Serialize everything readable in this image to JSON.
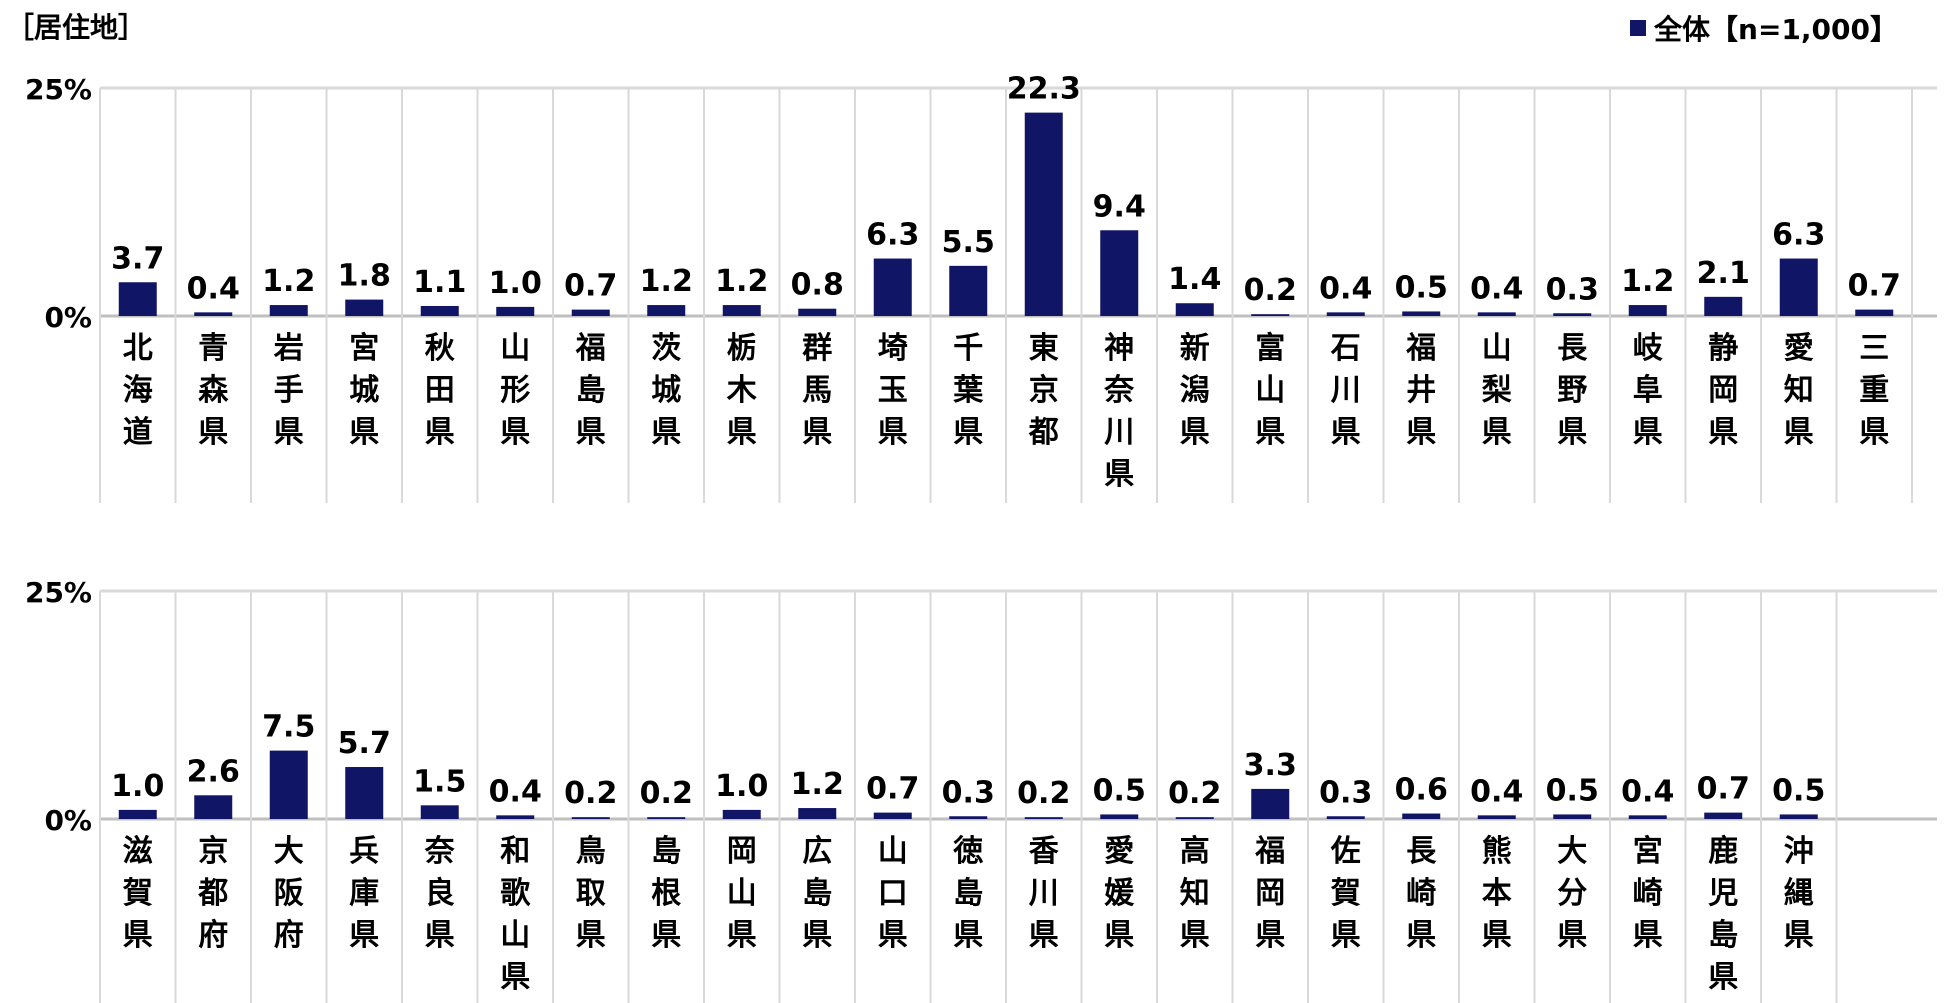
{
  "title": "［居住地］",
  "legend": {
    "label": "全体【n=1,000】",
    "color": "#111566"
  },
  "colors": {
    "bar": "#111566",
    "grid": "#d9d9d9",
    "axis": "#bfbfbf"
  },
  "chart_data": [
    {
      "type": "bar",
      "title": "",
      "xlabel": "",
      "ylabel": "",
      "ylim": [
        0,
        25
      ],
      "y_tick_labels": [
        "0%",
        "25%"
      ],
      "series": [
        {
          "name": "全体【n=1,000】"
        }
      ],
      "categories": [
        "北海道",
        "青森県",
        "岩手県",
        "宮城県",
        "秋田県",
        "山形県",
        "福島県",
        "茨城県",
        "栃木県",
        "群馬県",
        "埼玉県",
        "千葉県",
        "東京都",
        "神奈川県",
        "新潟県",
        "富山県",
        "石川県",
        "福井県",
        "山梨県",
        "長野県",
        "岐阜県",
        "静岡県",
        "愛知県",
        "三重県"
      ],
      "values": [
        3.7,
        0.4,
        1.2,
        1.8,
        1.1,
        1.0,
        0.7,
        1.2,
        1.2,
        0.8,
        6.3,
        5.5,
        22.3,
        9.4,
        1.4,
        0.2,
        0.4,
        0.5,
        0.4,
        0.3,
        1.2,
        2.1,
        6.3,
        0.7
      ],
      "value_labels": [
        "3.7",
        "0.4",
        "1.2",
        "1.8",
        "1.1",
        "1.0",
        "0.7",
        "1.2",
        "1.2",
        "0.8",
        "6.3",
        "5.5",
        "22.3",
        "9.4",
        "1.4",
        "0.2",
        "0.4",
        "0.5",
        "0.4",
        "0.3",
        "1.2",
        "2.1",
        "6.3",
        "0.7"
      ]
    },
    {
      "type": "bar",
      "title": "",
      "xlabel": "",
      "ylabel": "",
      "ylim": [
        0,
        25
      ],
      "y_tick_labels": [
        "0%",
        "25%"
      ],
      "series": [
        {
          "name": "全体【n=1,000】"
        }
      ],
      "categories": [
        "滋賀県",
        "京都府",
        "大阪府",
        "兵庫県",
        "奈良県",
        "和歌山県",
        "鳥取県",
        "島根県",
        "岡山県",
        "広島県",
        "山口県",
        "徳島県",
        "香川県",
        "愛媛県",
        "高知県",
        "福岡県",
        "佐賀県",
        "長崎県",
        "熊本県",
        "大分県",
        "宮崎県",
        "鹿児島県",
        "沖縄県"
      ],
      "values": [
        1.0,
        2.6,
        7.5,
        5.7,
        1.5,
        0.4,
        0.2,
        0.2,
        1.0,
        1.2,
        0.7,
        0.3,
        0.2,
        0.5,
        0.2,
        3.3,
        0.3,
        0.6,
        0.4,
        0.5,
        0.4,
        0.7,
        0.5
      ],
      "value_labels": [
        "1.0",
        "2.6",
        "7.5",
        "5.7",
        "1.5",
        "0.4",
        "0.2",
        "0.2",
        "1.0",
        "1.2",
        "0.7",
        "0.3",
        "0.2",
        "0.5",
        "0.2",
        "3.3",
        "0.3",
        "0.6",
        "0.4",
        "0.5",
        "0.4",
        "0.7",
        "0.5"
      ]
    }
  ]
}
